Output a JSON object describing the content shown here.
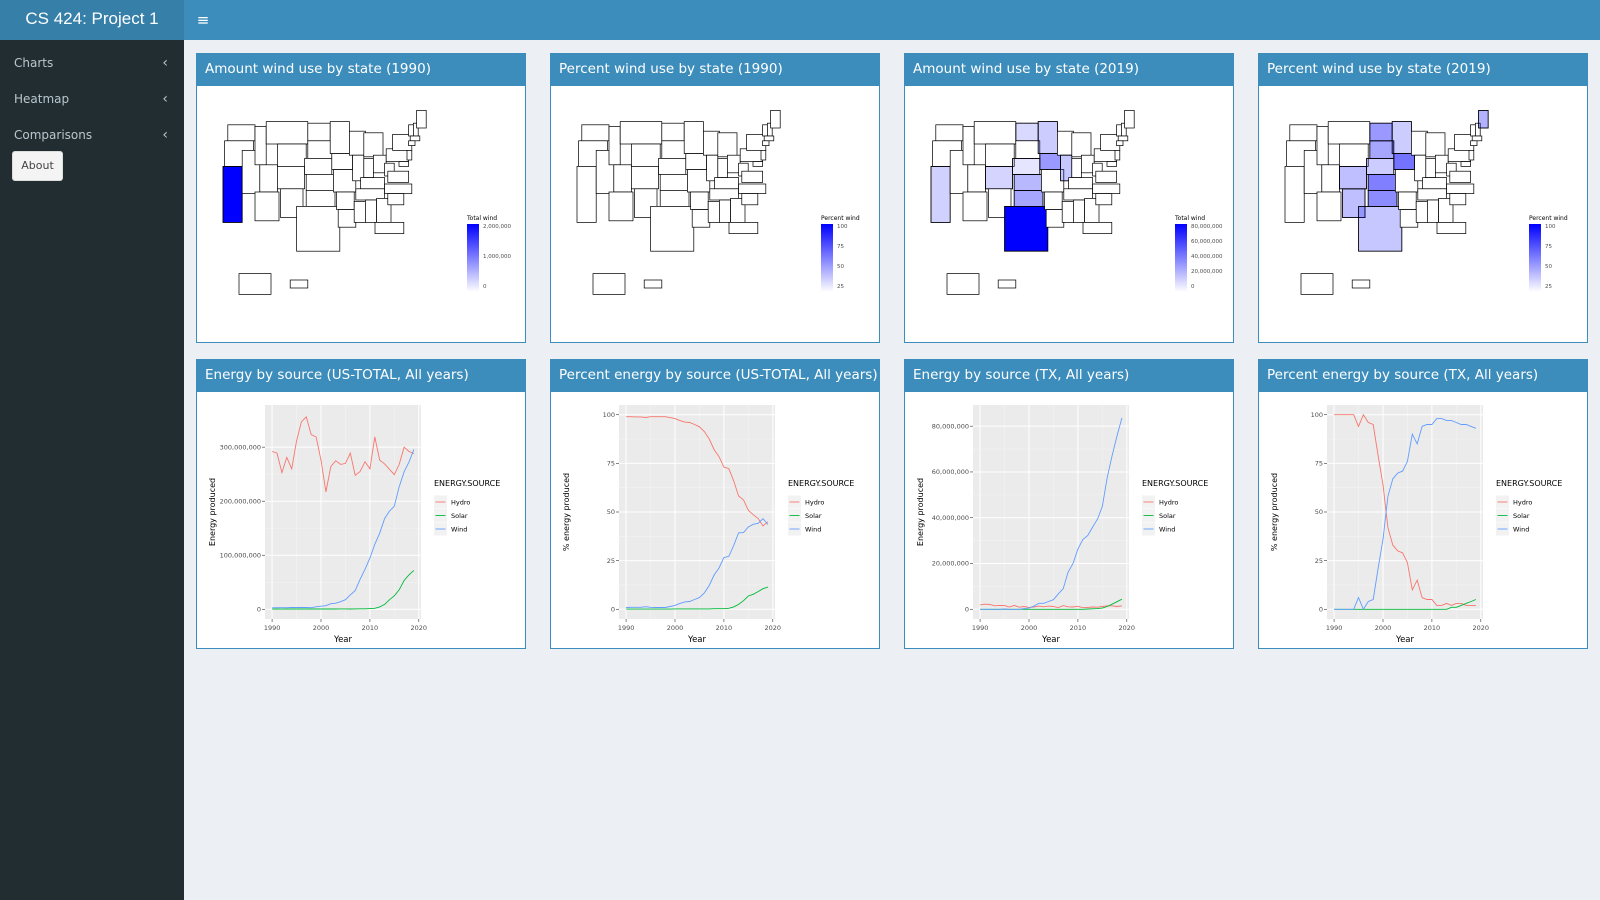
{
  "app": {
    "title": "CS 424: Project 1"
  },
  "topbar": {
    "menu_icon": "hamburger-icon"
  },
  "sidebar": {
    "items": [
      {
        "label": "Charts",
        "icon": "chevron-left-icon"
      },
      {
        "label": "Heatmap",
        "icon": "chevron-left-icon"
      },
      {
        "label": "Comparisons",
        "icon": "chevron-left-icon"
      }
    ],
    "about_label": "About"
  },
  "colors": {
    "hydro": "#f8766d",
    "solar": "#00ba38",
    "wind": "#619cff",
    "map_high": "#0000ff",
    "header": "#3c8dbc",
    "sidebar": "#222d32"
  },
  "maps": [
    {
      "title": "Amount wind use by state (1990)",
      "legend_title": "Total wind",
      "legend_ticks": [
        "2,000,000",
        "1,000,000",
        "0"
      ],
      "shaded_states": [
        {
          "state": "CA",
          "intensity": 1.0
        }
      ]
    },
    {
      "title": "Percent wind use by state (1990)",
      "legend_title": "Percent wind",
      "legend_ticks": [
        "100",
        "75",
        "50",
        "25"
      ],
      "shaded_states": []
    },
    {
      "title": "Amount wind use by state (2019)",
      "legend_title": "Total wind",
      "legend_ticks": [
        "80,000,000",
        "60,000,000",
        "40,000,000",
        "20,000,000",
        "0"
      ],
      "shaded_states": [
        {
          "state": "TX",
          "intensity": 1.0
        },
        {
          "state": "OK",
          "intensity": 0.35
        },
        {
          "state": "IA",
          "intensity": 0.4
        },
        {
          "state": "KS",
          "intensity": 0.28
        },
        {
          "state": "CA",
          "intensity": 0.18
        },
        {
          "state": "IL",
          "intensity": 0.22
        },
        {
          "state": "ND",
          "intensity": 0.15
        },
        {
          "state": "MN",
          "intensity": 0.2
        },
        {
          "state": "CO",
          "intensity": 0.17
        },
        {
          "state": "NE",
          "intensity": 0.1
        }
      ]
    },
    {
      "title": "Percent wind use by state (2019)",
      "legend_title": "Percent wind",
      "legend_ticks": [
        "100",
        "75",
        "50",
        "25"
      ],
      "shaded_states": [
        {
          "state": "IA",
          "intensity": 0.55
        },
        {
          "state": "KS",
          "intensity": 0.5
        },
        {
          "state": "OK",
          "intensity": 0.45
        },
        {
          "state": "ND",
          "intensity": 0.4
        },
        {
          "state": "SD",
          "intensity": 0.35
        },
        {
          "state": "ME",
          "intensity": 0.3
        },
        {
          "state": "NM",
          "intensity": 0.25
        },
        {
          "state": "TX",
          "intensity": 0.22
        },
        {
          "state": "CO",
          "intensity": 0.25
        },
        {
          "state": "MN",
          "intensity": 0.2
        },
        {
          "state": "NE",
          "intensity": 0.2
        }
      ]
    }
  ],
  "chart_data": [
    {
      "type": "line",
      "title": "Energy by source (US-TOTAL, All years)",
      "xlabel": "Year",
      "ylabel": "Energy produced",
      "xlim": [
        1990,
        2019
      ],
      "ylim": [
        0,
        360000000
      ],
      "x_ticks": [
        1990,
        2000,
        2010,
        2020
      ],
      "y_ticks": [
        0,
        100000000,
        200000000,
        300000000
      ],
      "y_tick_labels": [
        "0",
        "100,000,000",
        "200,000,000",
        "300,000,000"
      ],
      "legend_title": "ENERGY.SOURCE",
      "legend_position": "right",
      "x": [
        1990,
        1991,
        1992,
        1993,
        1994,
        1995,
        1996,
        1997,
        1998,
        1999,
        2000,
        2001,
        2002,
        2003,
        2004,
        2005,
        2006,
        2007,
        2008,
        2009,
        2010,
        2011,
        2012,
        2013,
        2014,
        2015,
        2016,
        2017,
        2018,
        2019
      ],
      "series": [
        {
          "name": "Hydro",
          "color": "#f8766d",
          "values": [
            292000000,
            289000000,
            253000000,
            281000000,
            260000000,
            311000000,
            347000000,
            356000000,
            323000000,
            319000000,
            276000000,
            217000000,
            264000000,
            275000000,
            268000000,
            270000000,
            289000000,
            248000000,
            255000000,
            273000000,
            260000000,
            319000000,
            276000000,
            269000000,
            259000000,
            249000000,
            268000000,
            300000000,
            292000000,
            288000000
          ]
        },
        {
          "name": "Solar",
          "color": "#00ba38",
          "values": [
            400000,
            500000,
            400000,
            500000,
            500000,
            500000,
            500000,
            500000,
            500000,
            500000,
            500000,
            500000,
            600000,
            500000,
            600000,
            600000,
            500000,
            600000,
            900000,
            900000,
            1200000,
            1800000,
            4300000,
            9000000,
            17700000,
            24900000,
            36100000,
            53300000,
            63800000,
            71900000
          ]
        },
        {
          "name": "Wind",
          "color": "#619cff",
          "values": [
            2800000,
            3000000,
            2900000,
            3000000,
            3400000,
            3200000,
            3200000,
            3300000,
            3000000,
            4500000,
            5600000,
            6700000,
            10400000,
            11200000,
            14100000,
            17800000,
            26600000,
            34500000,
            55400000,
            73900000,
            94700000,
            120200000,
            140800000,
            167800000,
            181700000,
            190700000,
            226900000,
            254300000,
            272700000,
            295900000
          ]
        }
      ]
    },
    {
      "type": "line",
      "title": "Percent energy by source (US-TOTAL, All years)",
      "xlabel": "Year",
      "ylabel": "% energy produced",
      "xlim": [
        1990,
        2019
      ],
      "ylim": [
        0,
        100
      ],
      "x_ticks": [
        1990,
        2000,
        2010,
        2020
      ],
      "y_ticks": [
        0,
        25,
        50,
        75,
        100
      ],
      "y_tick_labels": [
        "0",
        "25",
        "50",
        "75",
        "100"
      ],
      "legend_title": "ENERGY.SOURCE",
      "legend_position": "right",
      "x": [
        1990,
        1991,
        1992,
        1993,
        1994,
        1995,
        1996,
        1997,
        1998,
        1999,
        2000,
        2001,
        2002,
        2003,
        2004,
        2005,
        2006,
        2007,
        2008,
        2009,
        2010,
        2011,
        2012,
        2013,
        2014,
        2015,
        2016,
        2017,
        2018,
        2019
      ],
      "series": [
        {
          "name": "Hydro",
          "color": "#f8766d",
          "values": [
            99,
            99,
            98.9,
            98.9,
            98.6,
            99,
            99,
            99,
            99,
            98.5,
            98,
            97,
            96.2,
            96,
            95,
            93.8,
            91.4,
            87.6,
            82.1,
            78.5,
            73.1,
            72.3,
            66,
            58.2,
            56.2,
            50.9,
            48.6,
            46.7,
            42.8,
            45
          ]
        },
        {
          "name": "Solar",
          "color": "#00ba38",
          "values": [
            0.1,
            0.1,
            0.1,
            0.1,
            0.1,
            0.1,
            0.1,
            0.1,
            0.1,
            0.1,
            0.2,
            0.2,
            0.2,
            0.2,
            0.2,
            0.2,
            0.2,
            0.2,
            0.3,
            0.3,
            0.3,
            0.5,
            1.2,
            2.5,
            4.4,
            6.8,
            7.7,
            9.1,
            10.6,
            11.4
          ]
        },
        {
          "name": "Wind",
          "color": "#619cff",
          "values": [
            0.9,
            1,
            1,
            1,
            1.3,
            1,
            0.9,
            0.9,
            0.9,
            1.4,
            2,
            3,
            3.8,
            4,
            5,
            6,
            8.4,
            12.2,
            17.6,
            21.2,
            26.6,
            27.2,
            32.8,
            39.3,
            39.4,
            42.3,
            43.7,
            44.2,
            46.6,
            43.6
          ]
        }
      ]
    },
    {
      "type": "line",
      "title": "Energy by source (TX, All years)",
      "xlabel": "Year",
      "ylabel": "Energy produced",
      "xlim": [
        1990,
        2019
      ],
      "ylim": [
        0,
        85000000
      ],
      "x_ticks": [
        1990,
        2000,
        2010,
        2020
      ],
      "y_ticks": [
        0,
        20000000,
        40000000,
        60000000,
        80000000
      ],
      "y_tick_labels": [
        "0",
        "20,000,000",
        "40,000,000",
        "60,000,000",
        "80,000,000"
      ],
      "legend_title": "ENERGY.SOURCE",
      "legend_position": "right",
      "x": [
        1990,
        1991,
        1992,
        1993,
        1994,
        1995,
        1996,
        1997,
        1998,
        1999,
        2000,
        2001,
        2002,
        2003,
        2004,
        2005,
        2006,
        2007,
        2008,
        2009,
        2010,
        2011,
        2012,
        2013,
        2014,
        2015,
        2016,
        2017,
        2018,
        2019
      ],
      "series": [
        {
          "name": "Hydro",
          "color": "#f8766d",
          "values": [
            1900000,
            2200000,
            2100000,
            1500000,
            1700000,
            1600000,
            1000000,
            1700000,
            900000,
            1200000,
            800000,
            1000000,
            1400000,
            1100000,
            1400000,
            1200000,
            700000,
            1600000,
            1100000,
            1000000,
            1300000,
            700000,
            800000,
            1000000,
            900000,
            1200000,
            1500000,
            1500000,
            1200000,
            1500000
          ]
        },
        {
          "name": "Solar",
          "color": "#00ba38",
          "values": [
            0,
            0,
            0,
            0,
            0,
            0,
            0,
            0,
            0,
            0,
            0,
            0,
            0,
            0,
            0,
            0,
            0,
            0,
            0,
            0,
            0,
            0,
            100000,
            200000,
            300000,
            500000,
            1200000,
            2200000,
            3300000,
            4400000
          ]
        },
        {
          "name": "Wind",
          "color": "#619cff",
          "values": [
            0,
            0,
            0,
            0,
            0,
            100000,
            0,
            0,
            0,
            300000,
            500000,
            1400000,
            2600000,
            2600000,
            3400000,
            4200000,
            6700000,
            9000000,
            16200000,
            20000000,
            26300000,
            30500000,
            32200000,
            35900000,
            39400000,
            44900000,
            57500000,
            67100000,
            75700000,
            83600000
          ]
        }
      ]
    },
    {
      "type": "line",
      "title": "Percent energy by source (TX, All years)",
      "xlabel": "Year",
      "ylabel": "% energy produced",
      "xlim": [
        1990,
        2019
      ],
      "ylim": [
        0,
        100
      ],
      "x_ticks": [
        1990,
        2000,
        2010,
        2020
      ],
      "y_ticks": [
        0,
        25,
        50,
        75,
        100
      ],
      "y_tick_labels": [
        "0",
        "25",
        "50",
        "75",
        "100"
      ],
      "legend_title": "ENERGY.SOURCE",
      "legend_position": "right",
      "x": [
        1990,
        1991,
        1992,
        1993,
        1994,
        1995,
        1996,
        1997,
        1998,
        1999,
        2000,
        2001,
        2002,
        2003,
        2004,
        2005,
        2006,
        2007,
        2008,
        2009,
        2010,
        2011,
        2012,
        2013,
        2014,
        2015,
        2016,
        2017,
        2018,
        2019
      ],
      "series": [
        {
          "name": "Hydro",
          "color": "#f8766d",
          "values": [
            100,
            100,
            100,
            100,
            100,
            94,
            100,
            96,
            95,
            79,
            64,
            42,
            33,
            30,
            29,
            24,
            10,
            15,
            6,
            5,
            5,
            2,
            2,
            3,
            2,
            3,
            3,
            2,
            2,
            2
          ]
        },
        {
          "name": "Solar",
          "color": "#00ba38",
          "values": [
            0,
            0,
            0,
            0,
            0,
            0,
            0,
            0,
            0,
            0,
            0,
            0,
            0,
            0,
            0,
            0,
            0,
            0,
            0,
            0,
            0,
            0,
            0,
            0,
            1,
            1,
            2,
            3,
            4,
            5
          ]
        },
        {
          "name": "Wind",
          "color": "#619cff",
          "values": [
            0,
            0,
            0,
            0,
            0,
            6,
            0,
            4,
            5,
            21,
            36,
            58,
            67,
            70,
            71,
            76,
            90,
            85,
            94,
            95,
            95,
            98,
            98,
            97,
            97,
            96,
            95,
            95,
            94,
            93
          ]
        }
      ]
    }
  ]
}
